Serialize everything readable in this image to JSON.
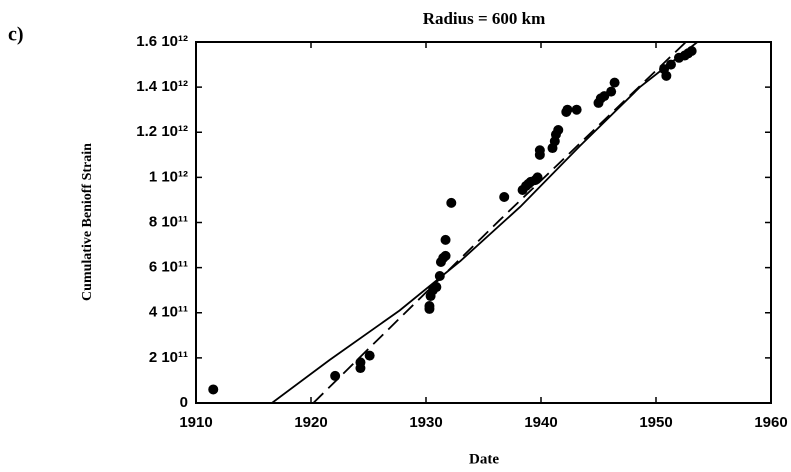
{
  "panel_label": "c)",
  "chart_data": {
    "type": "scatter",
    "title": "Radius = 600 km",
    "xlabel": "Date",
    "ylabel": "Cumulative Benioff Strain",
    "xlim": [
      1910,
      1960
    ],
    "xticks": [
      1910,
      1920,
      1930,
      1940,
      1950,
      1960
    ],
    "ylim": [
      0,
      1600000000000.0
    ],
    "yticks": [
      0,
      {
        "value": 200000000000.0,
        "label": "2 10¹¹"
      },
      {
        "value": 400000000000.0,
        "label": "4 10¹¹"
      },
      {
        "value": 600000000000.0,
        "label": "6 10¹¹"
      },
      {
        "value": 800000000000.0,
        "label": "8 10¹¹"
      },
      {
        "value": 1000000000000.0,
        "label": "1 10¹²"
      },
      {
        "value": 1200000000000.0,
        "label": "1.2 10¹²"
      },
      {
        "value": 1400000000000.0,
        "label": "1.4 10¹²"
      },
      {
        "value": 1600000000000.0,
        "label": "1.6 10¹²"
      }
    ],
    "series": [
      {
        "type": "scatter",
        "color": "#000000",
        "x": [
          1911.5,
          1922.1,
          1924.3,
          1924.3,
          1925.1,
          1930.3,
          1930.3,
          1930.4,
          1930.6,
          1930.9,
          1931.2,
          1931.3,
          1931.5,
          1931.7,
          1931.7,
          1932.2,
          1936.8,
          1938.4,
          1938.7,
          1938.9,
          1939.1,
          1939.5,
          1939.7,
          1939.9,
          1939.9,
          1941.0,
          1941.2,
          1941.3,
          1941.5,
          1942.2,
          1942.3,
          1943.1,
          1945.0,
          1945.2,
          1945.5,
          1946.1,
          1946.4,
          1950.7,
          1950.9,
          1951.3,
          1952.0,
          1952.5,
          1952.8,
          1953.1
        ],
        "values": [
          60000000000.0,
          120000000000.0,
          155000000000.0,
          180000000000.0,
          210000000000.0,
          417000000000.0,
          430000000000.0,
          474000000000.0,
          500000000000.0,
          514000000000.0,
          563000000000.0,
          625000000000.0,
          643000000000.0,
          652000000000.0,
          723000000000.0,
          887000000000.0,
          913000000000.0,
          944000000000.0,
          962000000000.0,
          971000000000.0,
          980000000000.0,
          988000000000.0,
          1000000000000.0,
          1100000000000.0,
          1120000000000.0,
          1130000000000.0,
          1160000000000.0,
          1190000000000.0,
          1210000000000.0,
          1290000000000.0,
          1300000000000.0,
          1300000000000.0,
          1330000000000.0,
          1350000000000.0,
          1360000000000.0,
          1380000000000.0,
          1420000000000.0,
          1480000000000.0,
          1450000000000.0,
          1500000000000.0,
          1530000000000.0,
          1540000000000.0,
          1550000000000.0,
          1560000000000.0
        ]
      },
      {
        "type": "line",
        "style": "solid",
        "color": "#000000",
        "x": [
          1916.6,
          1921.6,
          1927.7,
          1933.0,
          1938.2,
          1943.4,
          1948.6,
          1953.6
        ],
        "values": [
          0,
          190000000000.0,
          410000000000.0,
          630000000000.0,
          870000000000.0,
          1140000000000.0,
          1400000000000.0,
          1600000000000.0
        ]
      },
      {
        "type": "line",
        "style": "dashed",
        "color": "#000000",
        "x": [
          1920.2,
          1936.4,
          1952.6
        ],
        "values": [
          0,
          810000000000.0,
          1600000000000.0
        ]
      }
    ]
  }
}
